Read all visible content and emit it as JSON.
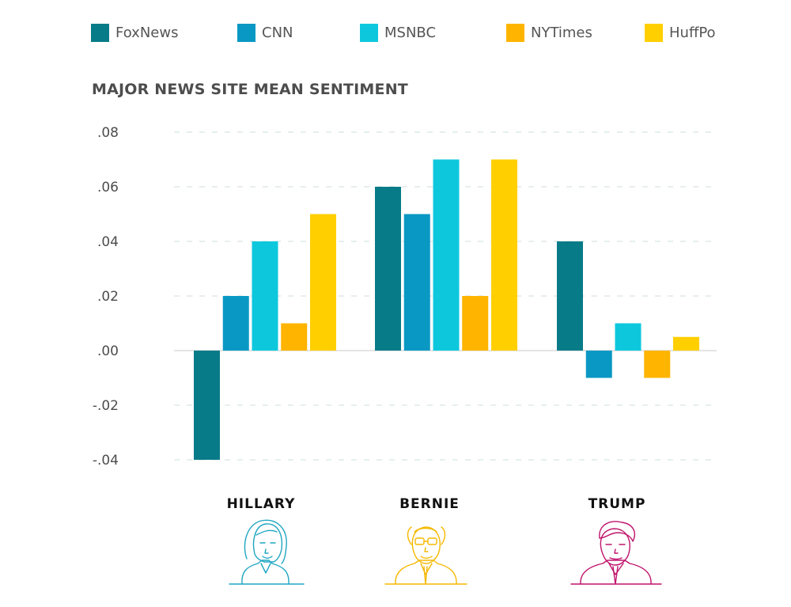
{
  "chart_data": {
    "type": "bar",
    "title": "MAJOR NEWS SITE MEAN SENTIMENT",
    "categories": [
      "HILLARY",
      "BERNIE",
      "TRUMP"
    ],
    "series": [
      {
        "name": "FoxNews",
        "color": "#087b88",
        "values": [
          -0.04,
          0.06,
          0.04
        ]
      },
      {
        "name": "CNN",
        "color": "#0998c4",
        "values": [
          0.02,
          0.05,
          -0.01
        ]
      },
      {
        "name": "MSNBC",
        "color": "#0dc8dd",
        "values": [
          0.04,
          0.07,
          0.01
        ]
      },
      {
        "name": "NYTimes",
        "color": "#ffb400",
        "values": [
          0.01,
          0.02,
          -0.01
        ]
      },
      {
        "name": "HuffPo",
        "color": "#ffcf00",
        "values": [
          0.05,
          0.07,
          0.005
        ]
      }
    ],
    "ylim": [
      -0.04,
      0.08
    ],
    "yticks": [
      ".08",
      ".06",
      ".04",
      ".02",
      ".00",
      "-.02",
      "-.04"
    ],
    "ytick_values": [
      0.08,
      0.06,
      0.04,
      0.02,
      0.0,
      -0.02,
      -0.04
    ],
    "grid": "dashed horizontal",
    "legend_position": "top",
    "xlabel": "",
    "ylabel": ""
  },
  "portrait_icons": [
    {
      "name": "hillary-portrait-icon",
      "color": "#1fa6c2"
    },
    {
      "name": "bernie-portrait-icon",
      "color": "#f5b800"
    },
    {
      "name": "trump-portrait-icon",
      "color": "#c0136b"
    }
  ]
}
